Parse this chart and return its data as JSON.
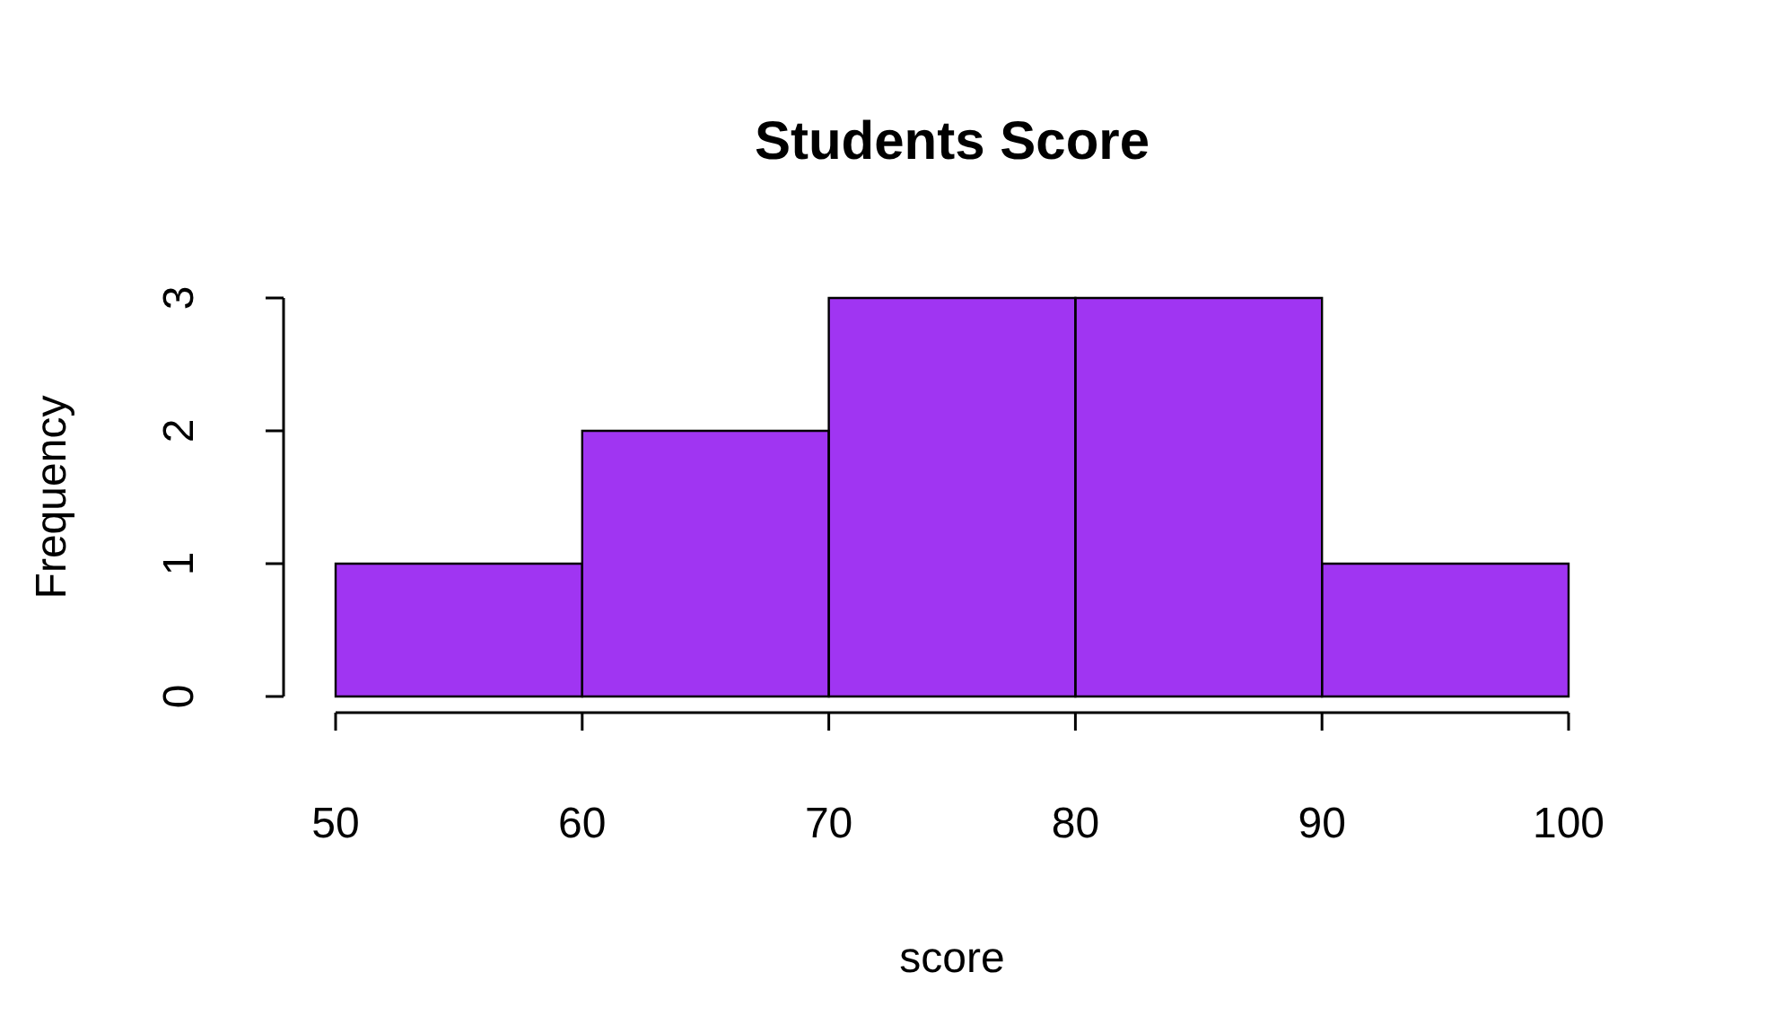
{
  "chart_data": {
    "type": "histogram",
    "title": "Students Score",
    "xlabel": "score",
    "ylabel": "Frequency",
    "bins": [
      50,
      60,
      70,
      80,
      90,
      100
    ],
    "values": [
      1,
      2,
      3,
      3,
      1
    ],
    "color": "#a035f2",
    "xlim": [
      50,
      100
    ],
    "xticks": [
      50,
      60,
      70,
      80,
      90,
      100
    ],
    "ylim": [
      0,
      3
    ],
    "yticks": [
      0,
      1,
      2,
      3
    ],
    "legend": false
  }
}
